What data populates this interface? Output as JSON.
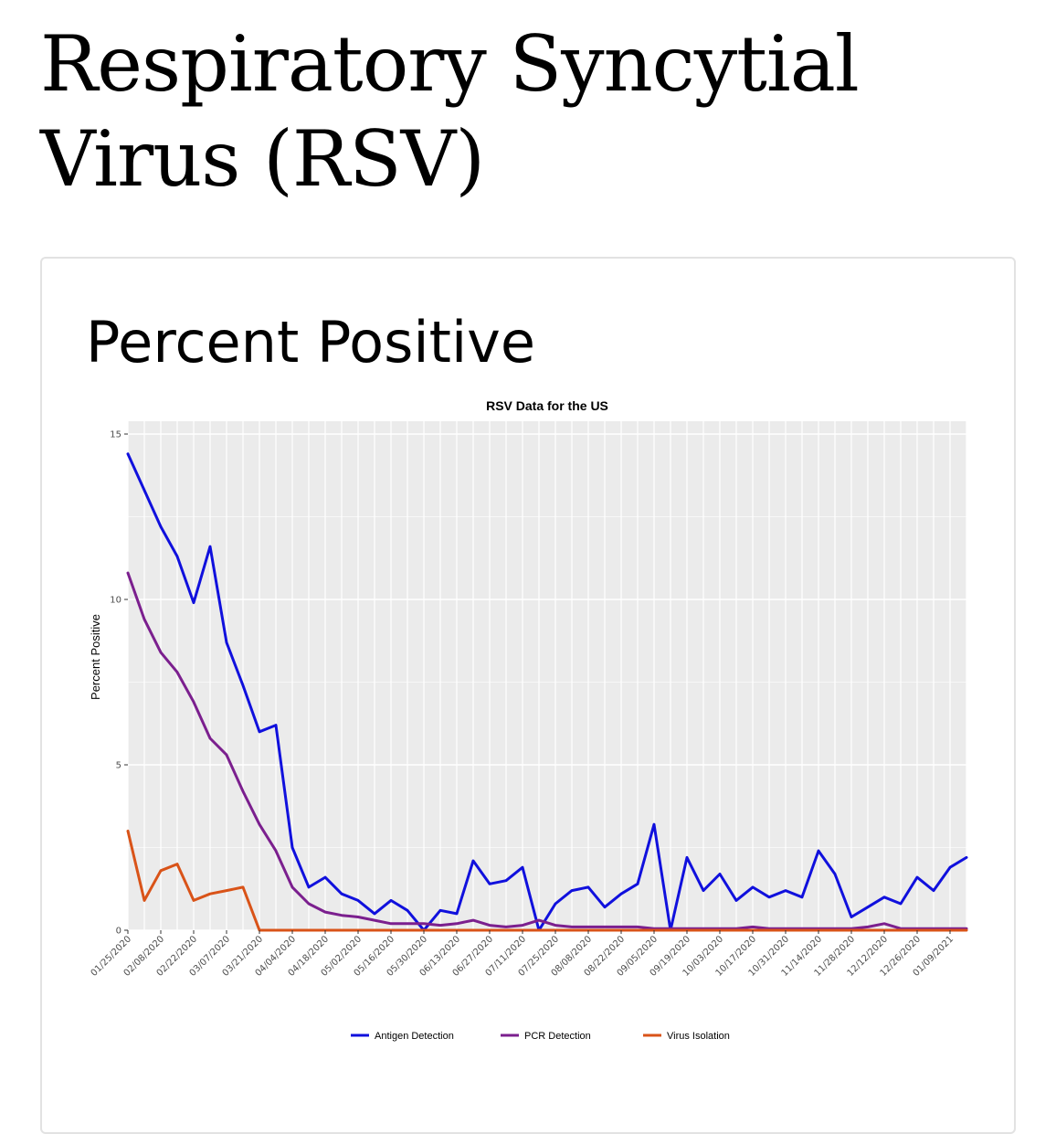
{
  "page": {
    "title": "Respiratory Syncytial Virus (RSV)"
  },
  "card": {
    "section_title": "Percent Positive"
  },
  "chart_data": {
    "type": "line",
    "title": "RSV Data for the US",
    "xlabel": "",
    "ylabel": "Percent Positive",
    "ylim": [
      0,
      15
    ],
    "y_ticks": [
      0,
      5,
      10,
      15
    ],
    "x_tick_labels": [
      "01/25/2020",
      "02/08/2020",
      "02/22/2020",
      "03/07/2020",
      "03/21/2020",
      "04/04/2020",
      "04/18/2020",
      "05/02/2020",
      "05/16/2020",
      "05/30/2020",
      "06/13/2020",
      "06/27/2020",
      "07/11/2020",
      "07/25/2020",
      "08/08/2020",
      "08/22/2020",
      "09/05/2020",
      "09/19/2020",
      "10/03/2020",
      "10/17/2020",
      "10/31/2020",
      "11/14/2020",
      "11/28/2020",
      "12/12/2020",
      "12/26/2020",
      "01/09/2021"
    ],
    "x": [
      "01/25/2020",
      "02/01/2020",
      "02/08/2020",
      "02/15/2020",
      "02/22/2020",
      "02/29/2020",
      "03/07/2020",
      "03/14/2020",
      "03/21/2020",
      "03/28/2020",
      "04/04/2020",
      "04/11/2020",
      "04/18/2020",
      "04/25/2020",
      "05/02/2020",
      "05/09/2020",
      "05/16/2020",
      "05/23/2020",
      "05/30/2020",
      "06/06/2020",
      "06/13/2020",
      "06/20/2020",
      "06/27/2020",
      "07/04/2020",
      "07/11/2020",
      "07/18/2020",
      "07/25/2020",
      "08/01/2020",
      "08/08/2020",
      "08/15/2020",
      "08/22/2020",
      "08/29/2020",
      "09/05/2020",
      "09/12/2020",
      "09/19/2020",
      "09/26/2020",
      "10/03/2020",
      "10/10/2020",
      "10/17/2020",
      "10/24/2020",
      "10/31/2020",
      "11/07/2020",
      "11/14/2020",
      "11/21/2020",
      "11/28/2020",
      "12/05/2020",
      "12/12/2020",
      "12/19/2020",
      "12/26/2020",
      "01/02/2021",
      "01/09/2021",
      "01/16/2021"
    ],
    "grid": true,
    "legend_position": "bottom",
    "series": [
      {
        "name": "Antigen Detection",
        "color": "#1010dd",
        "values": [
          14.4,
          13.3,
          12.2,
          11.3,
          9.9,
          11.6,
          8.7,
          7.4,
          6.0,
          6.2,
          2.5,
          1.3,
          1.6,
          1.1,
          0.9,
          0.5,
          0.9,
          0.6,
          0.0,
          0.6,
          0.5,
          2.1,
          1.4,
          1.5,
          1.9,
          0.0,
          0.8,
          1.2,
          1.3,
          0.7,
          1.1,
          1.4,
          3.2,
          0.0,
          2.2,
          1.2,
          1.7,
          0.9,
          1.3,
          1.0,
          1.2,
          1.0,
          2.4,
          1.7,
          0.4,
          0.7,
          1.0,
          0.8,
          1.6,
          1.2,
          1.9,
          2.2
        ]
      },
      {
        "name": "PCR Detection",
        "color": "#7b1f8e",
        "values": [
          10.8,
          9.4,
          8.4,
          7.8,
          6.9,
          5.8,
          5.3,
          4.2,
          3.2,
          2.4,
          1.3,
          0.8,
          0.55,
          0.45,
          0.4,
          0.3,
          0.2,
          0.2,
          0.2,
          0.15,
          0.2,
          0.3,
          0.15,
          0.1,
          0.15,
          0.3,
          0.15,
          0.1,
          0.1,
          0.1,
          0.1,
          0.1,
          0.05,
          0.05,
          0.05,
          0.05,
          0.05,
          0.05,
          0.1,
          0.05,
          0.05,
          0.05,
          0.05,
          0.05,
          0.05,
          0.1,
          0.2,
          0.05,
          0.05,
          0.05,
          0.05,
          0.05
        ]
      },
      {
        "name": "Virus Isolation",
        "color": "#d95318",
        "values": [
          3.0,
          0.9,
          1.8,
          2.0,
          0.9,
          1.1,
          1.2,
          1.3,
          0.0,
          0.0,
          0.0,
          0.0,
          0.0,
          0.0,
          0.0,
          0.0,
          0.0,
          0.0,
          0.0,
          0.0,
          0.0,
          0.0,
          0.0,
          0.0,
          0.0,
          0.0,
          0.0,
          0.0,
          0.0,
          0.0,
          0.0,
          0.0,
          0.0,
          0.0,
          0.0,
          0.0,
          0.0,
          0.0,
          0.0,
          0.0,
          0.0,
          0.0,
          0.0,
          0.0,
          0.0,
          0.0,
          0.0,
          0.0,
          0.0,
          0.0,
          0.0,
          0.0
        ]
      }
    ]
  }
}
